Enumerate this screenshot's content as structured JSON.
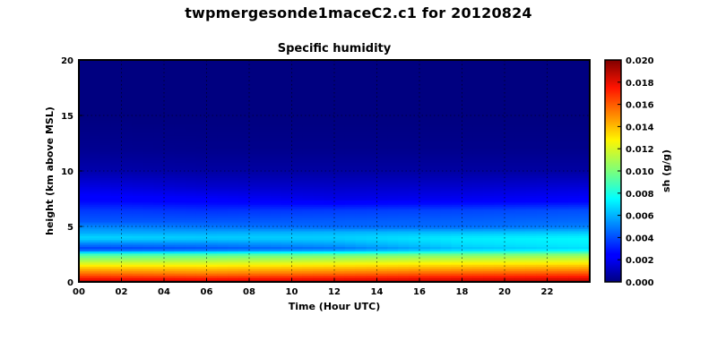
{
  "page": {
    "title": "twpmergesonde1maceC2.c1 for 20120824"
  },
  "chart_data": {
    "type": "heatmap",
    "title": "Specific humidity",
    "xlabel": "Time (Hour UTC)",
    "ylabel": "height (km above MSL)",
    "xlim": [
      0,
      24
    ],
    "ylim": [
      0,
      20
    ],
    "x_ticks": [
      "00",
      "02",
      "04",
      "06",
      "08",
      "10",
      "12",
      "14",
      "16",
      "18",
      "20",
      "22"
    ],
    "y_ticks": [
      "0",
      "5",
      "10",
      "15",
      "20"
    ],
    "grid": true,
    "colormap": "jet",
    "colorbar": {
      "label": "sh (g/g)",
      "range": [
        0.0,
        0.02
      ],
      "ticks": [
        "0.000",
        "0.002",
        "0.004",
        "0.006",
        "0.008",
        "0.010",
        "0.012",
        "0.014",
        "0.016",
        "0.018",
        "0.020"
      ]
    },
    "profiles": [
      {
        "time": 0,
        "points": [
          [
            0.0,
            0.0195
          ],
          [
            0.4,
            0.0172
          ],
          [
            0.8,
            0.0156
          ],
          [
            1.2,
            0.0142
          ],
          [
            1.6,
            0.0125
          ],
          [
            2.0,
            0.0108
          ],
          [
            2.5,
            0.0088
          ],
          [
            3.0,
            0.0035
          ],
          [
            3.4,
            0.0048
          ],
          [
            4.0,
            0.0068
          ],
          [
            4.5,
            0.0058
          ],
          [
            5.0,
            0.0052
          ],
          [
            5.5,
            0.0042
          ],
          [
            6.5,
            0.0036
          ],
          [
            7.5,
            0.0024
          ],
          [
            8.5,
            0.0018
          ],
          [
            10.0,
            0.0008
          ],
          [
            12.0,
            0.0003
          ],
          [
            15.0,
            0.0
          ],
          [
            20.0,
            0.0
          ]
        ]
      },
      {
        "time": 6,
        "points": [
          [
            0.0,
            0.0192
          ],
          [
            0.4,
            0.017
          ],
          [
            0.8,
            0.0152
          ],
          [
            1.2,
            0.014
          ],
          [
            1.6,
            0.0125
          ],
          [
            2.0,
            0.011
          ],
          [
            2.5,
            0.009
          ],
          [
            3.0,
            0.004
          ],
          [
            3.4,
            0.005
          ],
          [
            4.0,
            0.0066
          ],
          [
            4.5,
            0.0058
          ],
          [
            5.0,
            0.0048
          ],
          [
            5.5,
            0.0042
          ],
          [
            6.5,
            0.0034
          ],
          [
            7.5,
            0.0022
          ],
          [
            8.5,
            0.0014
          ],
          [
            10.0,
            0.0006
          ],
          [
            12.0,
            0.0002
          ],
          [
            15.0,
            0.0
          ],
          [
            20.0,
            0.0
          ]
        ]
      },
      {
        "time": 12,
        "points": [
          [
            0.0,
            0.0193
          ],
          [
            0.4,
            0.0173
          ],
          [
            0.8,
            0.0156
          ],
          [
            1.2,
            0.0143
          ],
          [
            1.6,
            0.0128
          ],
          [
            2.0,
            0.0114
          ],
          [
            2.5,
            0.0094
          ],
          [
            3.0,
            0.0046
          ],
          [
            3.4,
            0.0056
          ],
          [
            4.0,
            0.0066
          ],
          [
            4.5,
            0.006
          ],
          [
            5.0,
            0.0045
          ],
          [
            5.5,
            0.0043
          ],
          [
            6.5,
            0.0036
          ],
          [
            7.5,
            0.0018
          ],
          [
            8.5,
            0.0013
          ],
          [
            10.0,
            0.0006
          ],
          [
            12.0,
            0.0002
          ],
          [
            15.0,
            0.0
          ],
          [
            20.0,
            0.0
          ]
        ]
      },
      {
        "time": 18,
        "points": [
          [
            0.0,
            0.0195
          ],
          [
            0.4,
            0.0176
          ],
          [
            0.8,
            0.016
          ],
          [
            1.2,
            0.0146
          ],
          [
            1.6,
            0.0132
          ],
          [
            2.0,
            0.0118
          ],
          [
            2.5,
            0.0098
          ],
          [
            3.0,
            0.0062
          ],
          [
            3.4,
            0.0068
          ],
          [
            4.0,
            0.0072
          ],
          [
            4.5,
            0.0062
          ],
          [
            5.0,
            0.0046
          ],
          [
            5.5,
            0.0044
          ],
          [
            6.5,
            0.0038
          ],
          [
            7.5,
            0.002
          ],
          [
            8.5,
            0.0014
          ],
          [
            10.0,
            0.0006
          ],
          [
            12.0,
            0.0002
          ],
          [
            15.0,
            0.0
          ],
          [
            20.0,
            0.0
          ]
        ]
      },
      {
        "time": 24,
        "points": [
          [
            0.0,
            0.0196
          ],
          [
            0.4,
            0.0178
          ],
          [
            0.8,
            0.0162
          ],
          [
            1.2,
            0.0148
          ],
          [
            1.6,
            0.0134
          ],
          [
            2.0,
            0.012
          ],
          [
            2.5,
            0.0102
          ],
          [
            3.0,
            0.0068
          ],
          [
            3.4,
            0.0072
          ],
          [
            4.0,
            0.0074
          ],
          [
            4.5,
            0.0064
          ],
          [
            5.0,
            0.005
          ],
          [
            5.5,
            0.0046
          ],
          [
            6.5,
            0.004
          ],
          [
            7.5,
            0.0022
          ],
          [
            8.5,
            0.0016
          ],
          [
            10.0,
            0.0006
          ],
          [
            12.0,
            0.0002
          ],
          [
            15.0,
            0.0
          ],
          [
            20.0,
            0.0
          ]
        ]
      }
    ]
  }
}
